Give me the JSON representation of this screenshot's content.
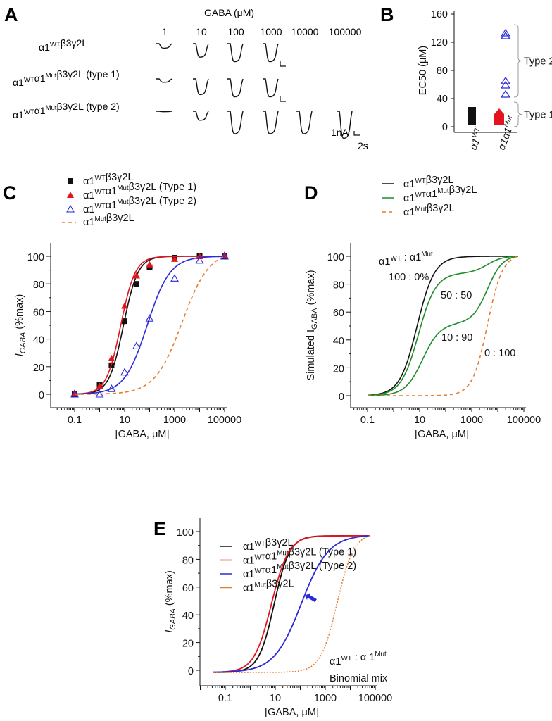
{
  "colors": {
    "black": "#111111",
    "red": "#e3141c",
    "blue": "#2a2ad8",
    "orange": "#e57b2c",
    "green": "#1f8c2a"
  },
  "panelA": {
    "label": "A",
    "header": "GABA (μM)",
    "concentrations": [
      "1",
      "10",
      "100",
      "1000",
      "10000",
      "100000"
    ],
    "rows": [
      {
        "label": [
          {
            "t": "α1"
          },
          {
            "s": "WT"
          },
          {
            "t": "β3γ2L"
          }
        ],
        "depths": [
          0.2,
          0.6,
          0.8,
          0.8
        ]
      },
      {
        "label": [
          {
            "t": "α1"
          },
          {
            "s": "WT"
          },
          {
            "t": "α1"
          },
          {
            "s": "Mut"
          },
          {
            "t": "β3γ2L (type 1)"
          }
        ],
        "depths": [
          0.15,
          0.7,
          0.8,
          0.8
        ]
      },
      {
        "label": [
          {
            "t": "α1"
          },
          {
            "s": "WT"
          },
          {
            "t": "α1"
          },
          {
            "s": "Mut"
          },
          {
            "t": "β3γ2L (type 2)"
          }
        ],
        "depths": [
          0.02,
          0.4,
          1.0,
          1.0,
          1.0,
          1.2
        ]
      }
    ],
    "scale_current": "1nA",
    "scale_time": "2s"
  },
  "chart_data": [
    {
      "panel": "B",
      "type": "scatter",
      "ylabel": "EC50 (μM)",
      "ylim": [
        0,
        160
      ],
      "yticks": [
        "0",
        "40",
        "80",
        "120",
        "160"
      ],
      "categories": [
        [
          {
            "t": "α1"
          },
          {
            "s": "WT"
          }
        ],
        [
          {
            "t": "α1α1"
          },
          {
            "s": "Mut"
          }
        ]
      ],
      "series": [
        {
          "name": "α1WT",
          "color": "black",
          "marker": "filled-bar",
          "range": [
            2,
            28
          ]
        },
        {
          "name": "α1α1Mut type 1",
          "color": "red",
          "marker": "filled-triangle",
          "range": [
            2,
            22
          ]
        },
        {
          "name": "α1α1Mut type 2",
          "color": "blue",
          "marker": "open-triangle",
          "values": [
            133,
            129,
            65,
            59,
            46
          ]
        }
      ],
      "groups": [
        {
          "label": "Type 2",
          "range": [
            42,
            145
          ]
        },
        {
          "label": "Type 1",
          "range": [
            0,
            35
          ]
        }
      ]
    },
    {
      "panel": "C",
      "type": "line+scatter",
      "ylabel": "I",
      "ylabel_sub": "GABA",
      "ylabel_rest": " (%max)",
      "xlabel": "[GABA, μM]",
      "xscale": "log",
      "xlim": [
        0.1,
        100000
      ],
      "ylim": [
        0,
        100
      ],
      "xticks": [
        "0.1",
        "10",
        "1000",
        "100000"
      ],
      "yticks": [
        "0",
        "20",
        "40",
        "60",
        "80",
        "100"
      ],
      "x": [
        0.1,
        1,
        3,
        10,
        30,
        100,
        1000,
        10000,
        100000
      ],
      "series": [
        {
          "name": [
            {
              "t": "α1"
            },
            {
              "s": "WT"
            },
            {
              "t": "β3γ2L"
            }
          ],
          "color": "black",
          "marker": "square",
          "values": [
            0,
            7,
            21,
            53,
            80,
            92,
            99,
            100,
            100
          ],
          "fit": {
            "ec50": 9,
            "n": 1.5
          }
        },
        {
          "name": [
            {
              "t": "α1"
            },
            {
              "s": "WT"
            },
            {
              "t": "α1"
            },
            {
              "s": "Mut"
            },
            {
              "t": "β3γ2L (Type 1)"
            }
          ],
          "color": "red",
          "marker": "triangle",
          "values": [
            1,
            6,
            26,
            64,
            86,
            94,
            98,
            100,
            101
          ],
          "fit": {
            "ec50": 7,
            "n": 1.5
          }
        },
        {
          "name": [
            {
              "t": "α1"
            },
            {
              "s": "WT"
            },
            {
              "t": "α1"
            },
            {
              "s": "Mut"
            },
            {
              "t": "β3γ2L (Type 2)"
            }
          ],
          "color": "blue",
          "marker": "open-triangle",
          "values": [
            0,
            0,
            4,
            16,
            35,
            55,
            84,
            97,
            100
          ],
          "fit": {
            "ec50": 80,
            "n": 0.95
          }
        },
        {
          "name": [
            {
              "t": "α1"
            },
            {
              "s": "Mut"
            },
            {
              "t": "β3γ2L"
            }
          ],
          "color": "orange",
          "marker": "dashed",
          "fit": {
            "ec50": 2000,
            "n": 0.8
          }
        }
      ]
    },
    {
      "panel": "D",
      "type": "line",
      "ylabel": "Simulated I",
      "ylabel_sub": "GABA",
      "ylabel_rest": " (%max)",
      "xlabel": "[GABA, μM]",
      "xscale": "log",
      "xlim": [
        0.1,
        60000
      ],
      "ylim": [
        0,
        100
      ],
      "xticks": [
        "0.1",
        "10",
        "1000",
        "100000"
      ],
      "yticks": [
        "0",
        "20",
        "40",
        "60",
        "80",
        "100"
      ],
      "legend": [
        {
          "name": [
            {
              "t": "α1"
            },
            {
              "s": "WT"
            },
            {
              "t": "β3γ2L"
            }
          ],
          "color": "black",
          "dash": false
        },
        {
          "name": [
            {
              "t": "α1"
            },
            {
              "s": "WT"
            },
            {
              "t": "α1"
            },
            {
              "s": "Mut"
            },
            {
              "t": "β3γ2L"
            }
          ],
          "color": "green",
          "dash": false
        },
        {
          "name": [
            {
              "t": "α1"
            },
            {
              "s": "Mut"
            },
            {
              "t": "β3γ2L"
            }
          ],
          "color": "orange",
          "dash": true
        }
      ],
      "series": [
        {
          "ratio": "100 : 0%",
          "color": "black",
          "wt": {
            "ec50": 8,
            "n": 1.3
          },
          "weight": 1
        },
        {
          "ratio": "50 : 50",
          "color": "green",
          "wt": {
            "ec50": 9,
            "n": 1.3
          },
          "weight": 0.88
        },
        {
          "ratio": "10 : 90",
          "color": "green",
          "wt": {
            "ec50": 13,
            "n": 1.3
          },
          "weight": 0.52
        },
        {
          "ratio": "0 : 100",
          "color": "orange",
          "wt": {
            "ec50": 8,
            "n": 1.3
          },
          "weight": 0,
          "dash": true
        }
      ],
      "mut": {
        "ec50": 4000,
        "n": 1.5
      },
      "ratio_header": [
        {
          "t": "α1"
        },
        {
          "s": "WT"
        },
        {
          "t": " : α1"
        },
        {
          "s": "Mut"
        }
      ]
    },
    {
      "panel": "E",
      "type": "line",
      "ylabel": "I",
      "ylabel_sub": "GABA",
      "ylabel_rest": " (%max)",
      "xlabel": "[GABA, μM]",
      "xscale": "log",
      "xlim": [
        0.033,
        60000
      ],
      "ylim": [
        0,
        100
      ],
      "xticks": [
        "0.1",
        "10",
        "1000",
        "100000"
      ],
      "yticks": [
        "0",
        "20",
        "40",
        "60",
        "80",
        "100"
      ],
      "series": [
        {
          "name": [
            {
              "t": "α1"
            },
            {
              "s": "WT"
            },
            {
              "t": "β3γ2L"
            }
          ],
          "color": "black",
          "fit": {
            "ec50": 9,
            "n": 1.4
          },
          "dash": false
        },
        {
          "name": [
            {
              "t": "α1"
            },
            {
              "s": "WT"
            },
            {
              "t": "α1"
            },
            {
              "s": "Mut"
            },
            {
              "t": "β3γ2L (Type 1)"
            }
          ],
          "color": "red",
          "fit": {
            "ec50": 7,
            "n": 1.25
          },
          "dash": false
        },
        {
          "name": [
            {
              "t": "α1"
            },
            {
              "s": "WT"
            },
            {
              "t": "α1"
            },
            {
              "s": "Mut"
            },
            {
              "t": "β3γ2L (Type 2)"
            }
          ],
          "color": "blue",
          "fit": {
            "ec50": 110,
            "n": 0.8
          },
          "dash": false
        },
        {
          "name": [
            {
              "t": "α1"
            },
            {
              "s": "Mut"
            },
            {
              "t": "β3γ2L"
            }
          ],
          "color": "orange",
          "fit": {
            "ec50": 3000,
            "n": 1.3
          },
          "dash": true
        }
      ],
      "annotation": [
        [
          {
            "t": "α1"
          },
          {
            "s": "WT"
          },
          {
            "t": " : α 1"
          },
          {
            "s": "Mut"
          }
        ],
        [
          {
            "t": "Binomial mix"
          }
        ]
      ]
    }
  ]
}
